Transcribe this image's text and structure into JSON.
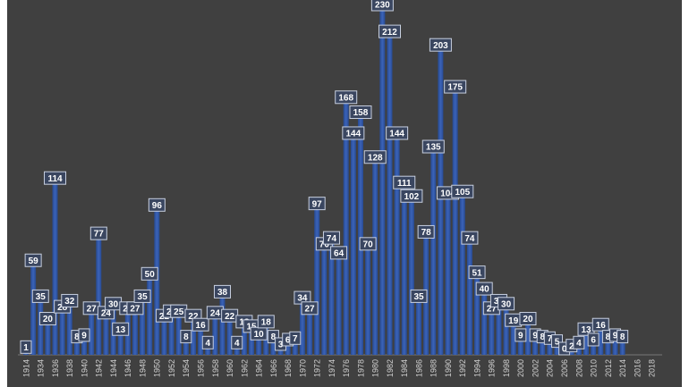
{
  "chart_data": {
    "type": "bar",
    "categories": [
      "1914",
      null,
      "1934",
      null,
      "1936",
      null,
      "1938",
      null,
      "1940",
      null,
      "1942",
      null,
      "1944",
      null,
      "1946",
      null,
      "1948",
      null,
      "1950",
      null,
      "1952",
      null,
      "1954",
      null,
      "1956",
      null,
      "1958",
      null,
      "1960",
      null,
      "1962",
      null,
      "1964",
      null,
      "1966",
      null,
      "1968",
      null,
      "1970",
      null,
      "1972",
      null,
      "1974",
      null,
      "1976",
      null,
      "1978",
      null,
      "1980",
      null,
      "1982",
      null,
      "1984",
      null,
      "1986",
      null,
      "1988",
      null,
      "1990",
      null,
      "1992",
      null,
      "1994",
      null,
      "1996",
      null,
      "1998",
      null,
      "2000",
      null,
      "2002",
      null,
      "2004",
      null,
      "2006",
      null,
      "2008",
      null,
      "2010",
      null,
      "2012",
      null,
      "2014",
      null,
      "2016",
      null,
      "2018"
    ],
    "values": [
      1,
      59,
      35,
      20,
      114,
      28,
      32,
      8,
      9,
      27,
      77,
      24,
      30,
      13,
      27,
      27,
      35,
      50,
      96,
      22,
      25,
      25,
      8,
      22,
      16,
      4,
      24,
      38,
      22,
      4,
      18,
      15,
      10,
      18,
      8,
      3,
      6,
      7,
      34,
      27,
      97,
      70,
      74,
      64,
      168,
      144,
      158,
      70,
      128,
      230,
      212,
      144,
      111,
      102,
      35,
      78,
      135,
      203,
      104,
      175,
      105,
      74,
      51,
      40,
      27,
      32,
      30,
      19,
      9,
      20,
      9,
      8,
      7,
      5,
      0,
      2,
      4,
      13,
      6,
      16,
      8,
      9,
      8,
      null,
      null,
      null,
      null
    ],
    "color": "#3b63b8",
    "ylim": [
      0,
      230
    ]
  }
}
